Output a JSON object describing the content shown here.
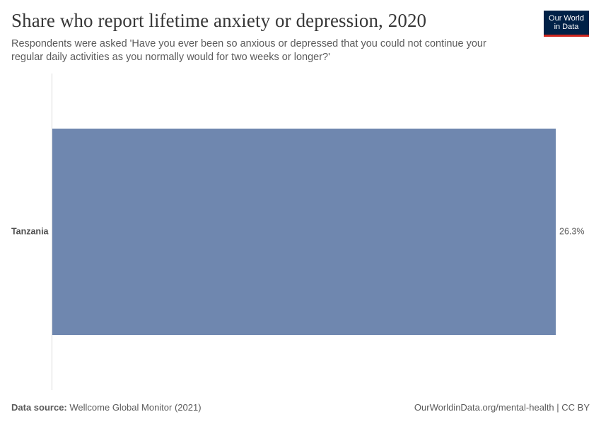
{
  "header": {
    "title": "Share who report lifetime anxiety or depression, 2020",
    "subtitle": "Respondents were asked 'Have you ever been so anxious or depressed that you could not continue your regular daily activities as you normally would for two weeks or longer?'"
  },
  "logo": {
    "line1": "Our World",
    "line2": "in Data"
  },
  "chart_data": {
    "type": "bar",
    "orientation": "horizontal",
    "categories": [
      "Tanzania"
    ],
    "values": [
      26.3
    ],
    "value_labels": [
      "26.3%"
    ],
    "unit": "%",
    "xlim": [
      0,
      26.3
    ],
    "grid": false,
    "legend": "none",
    "bar_color": "#6f87af"
  },
  "footer": {
    "source_label": "Data source:",
    "source_text": "Wellcome Global Monitor (2021)",
    "url_text": "OurWorldinData.org/mental-health | CC BY"
  }
}
